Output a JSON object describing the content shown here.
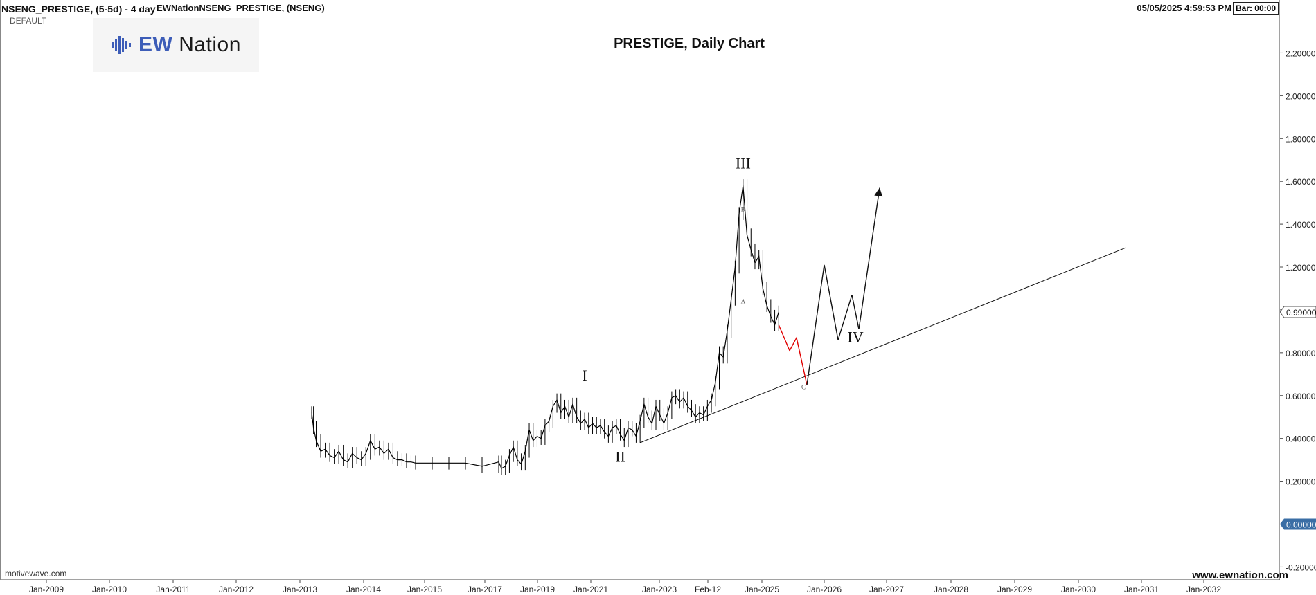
{
  "header": {
    "symbol": "NSENG_PRESTIGE, (5-5d) - 4 day",
    "source": "EWNationNSENG_PRESTIGE, (NSENG)",
    "template": "DEFAULT",
    "timestamp": "05/05/2025 4:59:53 PM",
    "bar_timer": "Bar: 00:00"
  },
  "logo": {
    "prefix": "EW",
    "rest": " Nation"
  },
  "footer": {
    "left": "motivewave.com",
    "right": "www.ewnation.com"
  },
  "colors": {
    "price": "#000000",
    "projection_red": "#e00000",
    "projection_black": "#111111",
    "axis_highlight": "#3a6ea5",
    "logo_blue": "#3d5db8"
  },
  "chart_data": {
    "type": "line",
    "title": "PRESTIGE, Daily Chart",
    "x_tick_labels": [
      "Jan-2009",
      "Jan-2010",
      "Jan-2011",
      "Jan-2012",
      "Jan-2013",
      "Jan-2014",
      "Jan-2015",
      "Jan-2017",
      "Jan-2019",
      "Jan-2021",
      "Jan-2023",
      "Feb-12",
      "Jan-2025",
      "Jan-2026",
      "Jan-2027",
      "Jan-2028",
      "Jan-2029",
      "Jan-2030",
      "Jan-2031",
      "Jan-2032"
    ],
    "y_tick_labels": [
      "2.20000",
      "2.00000",
      "1.80000",
      "1.60000",
      "1.40000",
      "1.20000",
      "1.00000",
      "0.80000",
      "0.60000",
      "0.40000",
      "0.20000",
      "0.00000",
      "-0.20000"
    ],
    "y_ticks": [
      2.2,
      2.0,
      1.8,
      1.6,
      1.4,
      1.2,
      1.0,
      0.8,
      0.6,
      0.4,
      0.2,
      0.0,
      -0.2
    ],
    "ylim": [
      -0.26,
      2.35
    ],
    "current_price": {
      "value": 0.99,
      "label": "0.99000"
    },
    "zero_marker": {
      "value": 0.0,
      "label": "0.00000"
    },
    "price_series": [
      {
        "i": 0,
        "y": 0.52
      },
      {
        "i": 0.4,
        "y": 0.45
      },
      {
        "i": 1,
        "y": 0.39
      },
      {
        "i": 2,
        "y": 0.34
      },
      {
        "i": 3,
        "y": 0.35
      },
      {
        "i": 4,
        "y": 0.32
      },
      {
        "i": 5,
        "y": 0.31
      },
      {
        "i": 6,
        "y": 0.34
      },
      {
        "i": 7,
        "y": 0.3
      },
      {
        "i": 8,
        "y": 0.29
      },
      {
        "i": 9,
        "y": 0.33
      },
      {
        "i": 10,
        "y": 0.31
      },
      {
        "i": 11,
        "y": 0.3
      },
      {
        "i": 12,
        "y": 0.33
      },
      {
        "i": 13,
        "y": 0.39
      },
      {
        "i": 14,
        "y": 0.35
      },
      {
        "i": 15,
        "y": 0.36
      },
      {
        "i": 16,
        "y": 0.33
      },
      {
        "i": 17,
        "y": 0.35
      },
      {
        "i": 18,
        "y": 0.31
      },
      {
        "i": 19,
        "y": 0.3
      },
      {
        "i": 20,
        "y": 0.3
      },
      {
        "i": 21,
        "y": 0.29
      },
      {
        "i": 22,
        "y": 0.29
      },
      {
        "i": 23,
        "y": 0.285
      },
      {
        "i": 24,
        "y": 0.285
      },
      {
        "i": 25,
        "y": 0.285
      },
      {
        "i": 26,
        "y": 0.285
      },
      {
        "i": 27,
        "y": 0.27
      },
      {
        "i": 28,
        "y": 0.29
      },
      {
        "i": 29,
        "y": 0.26
      },
      {
        "i": 30,
        "y": 0.27
      },
      {
        "i": 31,
        "y": 0.32
      },
      {
        "i": 32,
        "y": 0.36
      },
      {
        "i": 33,
        "y": 0.3
      },
      {
        "i": 34,
        "y": 0.28
      },
      {
        "i": 35,
        "y": 0.34
      },
      {
        "i": 36,
        "y": 0.44
      },
      {
        "i": 37,
        "y": 0.39
      },
      {
        "i": 38,
        "y": 0.41
      },
      {
        "i": 39,
        "y": 0.4
      },
      {
        "i": 40,
        "y": 0.46
      },
      {
        "i": 41,
        "y": 0.48
      },
      {
        "i": 42,
        "y": 0.55
      },
      {
        "i": 43,
        "y": 0.58
      },
      {
        "i": 44,
        "y": 0.52
      },
      {
        "i": 45,
        "y": 0.55
      },
      {
        "i": 46,
        "y": 0.5
      },
      {
        "i": 47,
        "y": 0.56
      },
      {
        "i": 48,
        "y": 0.5
      },
      {
        "i": 49,
        "y": 0.47
      },
      {
        "i": 50,
        "y": 0.49
      },
      {
        "i": 51,
        "y": 0.45
      },
      {
        "i": 52,
        "y": 0.47
      },
      {
        "i": 53,
        "y": 0.45
      },
      {
        "i": 54,
        "y": 0.46
      },
      {
        "i": 55,
        "y": 0.43
      },
      {
        "i": 56,
        "y": 0.41
      },
      {
        "i": 57,
        "y": 0.45
      },
      {
        "i": 58,
        "y": 0.46
      },
      {
        "i": 59,
        "y": 0.42
      },
      {
        "i": 60,
        "y": 0.39
      },
      {
        "i": 61,
        "y": 0.45
      },
      {
        "i": 62,
        "y": 0.44
      },
      {
        "i": 63,
        "y": 0.41
      },
      {
        "i": 64,
        "y": 0.48
      },
      {
        "i": 65,
        "y": 0.56
      },
      {
        "i": 66,
        "y": 0.5
      },
      {
        "i": 67,
        "y": 0.47
      },
      {
        "i": 68,
        "y": 0.55
      },
      {
        "i": 69,
        "y": 0.51
      },
      {
        "i": 70,
        "y": 0.47
      },
      {
        "i": 71,
        "y": 0.52
      },
      {
        "i": 72,
        "y": 0.59
      },
      {
        "i": 73,
        "y": 0.6
      },
      {
        "i": 74,
        "y": 0.57
      },
      {
        "i": 75,
        "y": 0.59
      },
      {
        "i": 76,
        "y": 0.55
      },
      {
        "i": 77,
        "y": 0.53
      },
      {
        "i": 78,
        "y": 0.5
      },
      {
        "i": 79,
        "y": 0.52
      },
      {
        "i": 80,
        "y": 0.51
      },
      {
        "i": 81,
        "y": 0.55
      },
      {
        "i": 82,
        "y": 0.58
      },
      {
        "i": 83,
        "y": 0.66
      },
      {
        "i": 84,
        "y": 0.8
      },
      {
        "i": 85,
        "y": 0.78
      },
      {
        "i": 86,
        "y": 0.9
      },
      {
        "i": 87,
        "y": 1.05
      },
      {
        "i": 88,
        "y": 1.2
      },
      {
        "i": 89,
        "y": 1.45
      },
      {
        "i": 90,
        "y": 1.58
      },
      {
        "i": 91,
        "y": 1.35
      },
      {
        "i": 92,
        "y": 1.28
      },
      {
        "i": 93,
        "y": 1.22
      },
      {
        "i": 94,
        "y": 1.25
      },
      {
        "i": 95,
        "y": 1.1
      },
      {
        "i": 96,
        "y": 1.02
      },
      {
        "i": 97,
        "y": 0.97
      },
      {
        "i": 98,
        "y": 0.93
      },
      {
        "i": 99,
        "y": 0.99
      }
    ],
    "trendline": {
      "from": {
        "i": 64,
        "y": 0.38
      },
      "to": {
        "i": 199,
        "y": 1.29
      }
    },
    "projection_red": [
      {
        "i": 99,
        "y": 0.93
      },
      {
        "i": 102,
        "y": 0.81
      },
      {
        "i": 104,
        "y": 0.87
      },
      {
        "i": 107,
        "y": 0.65
      }
    ],
    "projection_black": [
      {
        "i": 107,
        "y": 0.65
      },
      {
        "i": 112,
        "y": 1.21
      },
      {
        "i": 116,
        "y": 0.86
      },
      {
        "i": 120,
        "y": 1.07
      },
      {
        "i": 122,
        "y": 0.91
      },
      {
        "i": 128,
        "y": 1.57
      }
    ],
    "wave_labels": [
      {
        "text": "I",
        "i": 50,
        "y": 0.67
      },
      {
        "text": "II",
        "i": 59,
        "y": 0.29
      },
      {
        "text": "III",
        "i": 90,
        "y": 1.66
      },
      {
        "text": "IV",
        "i": 121,
        "y": 0.85
      },
      {
        "text": "B",
        "i": 90,
        "y": 1.46
      },
      {
        "text": "A",
        "i": 90,
        "y": 1.03
      },
      {
        "text": "C",
        "i": 106,
        "y": 0.63
      }
    ]
  }
}
